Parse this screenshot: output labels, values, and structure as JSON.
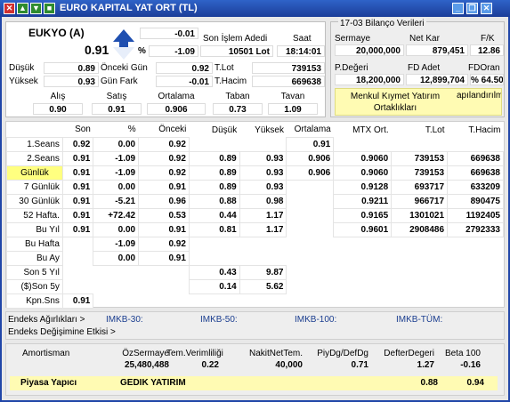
{
  "window": {
    "title": "EURO KAPITAL YAT ORT (TL)",
    "buttons": [
      "minimize-icon",
      "restore-icon",
      "close-icon"
    ]
  },
  "quote": {
    "symbol": "EUKYO (A)",
    "last_price": "0.91",
    "change": "-0.01",
    "change_pct": "-1.09",
    "pct_sign": "%",
    "last_trade_label": "Son İşlem Adedi",
    "last_trade_value": "10501 Lot",
    "time_label": "Saat",
    "time_value": "18:14:01"
  },
  "stats": {
    "low_label": "Düşük",
    "low": "0.89",
    "prev_day_label": "Önceki Gün",
    "prev_day": "0.92",
    "tlot_label": "T.Lot",
    "tlot": "739153",
    "high_label": "Yüksek",
    "high": "0.93",
    "day_diff_label": "Gün Fark",
    "day_diff": "-0.01",
    "thacim_label": "T.Hacim",
    "thacim": "669638"
  },
  "bidask": {
    "headers": [
      "Alış",
      "Satış",
      "Ortalama",
      "Taban",
      "Tavan"
    ],
    "values": [
      "0.90",
      "0.91",
      "0.906",
      "0.73",
      "1.09"
    ]
  },
  "balance": {
    "title": "17-03 Bilanço Verileri",
    "row1_labels": [
      "Sermaye",
      "Net Kar",
      "F/K"
    ],
    "row1_values": [
      "20,000,000",
      "879,451",
      "12.86"
    ],
    "row2_labels": [
      "P.Değeri",
      "FD Adet",
      "FDOran"
    ],
    "row2_values": [
      "18,200,000",
      "12,899,704",
      "% 64.50"
    ],
    "notice": "Menkul Kıymet Yatırım Ortaklıkları",
    "notice_overflow": "apılandırılm"
  },
  "grid": {
    "headers": [
      "",
      "Son",
      "%",
      "Önceki",
      "Düşük",
      "Yüksek",
      "Ortalama",
      "MTX Ort.",
      "T.Lot",
      "T.Hacim"
    ],
    "rows": [
      [
        "1.Seans",
        "0.92",
        "0.00",
        "0.92",
        "",
        "",
        "0.91",
        "",
        "",
        ""
      ],
      [
        "2.Seans",
        "0.91",
        "-1.09",
        "0.92",
        "0.89",
        "0.93",
        "0.906",
        "0.9060",
        "739153",
        "669638"
      ],
      [
        "Günlük",
        "0.91",
        "-1.09",
        "0.92",
        "0.89",
        "0.93",
        "0.906",
        "0.9060",
        "739153",
        "669638"
      ],
      [
        "7 Günlük",
        "0.91",
        "0.00",
        "0.91",
        "0.89",
        "0.93",
        "",
        "0.9128",
        "693717",
        "633209"
      ],
      [
        "30 Günlük",
        "0.91",
        "-5.21",
        "0.96",
        "0.88",
        "0.98",
        "",
        "0.9211",
        "966717",
        "890475"
      ],
      [
        "52 Hafta.",
        "0.91",
        "+72.42",
        "0.53",
        "0.44",
        "1.17",
        "",
        "0.9165",
        "1301021",
        "1192405"
      ],
      [
        "Bu Yıl",
        "0.91",
        "0.00",
        "0.91",
        "0.81",
        "1.17",
        "",
        "0.9601",
        "2908486",
        "2792333"
      ],
      [
        "Bu Hafta",
        "",
        "-1.09",
        "0.92",
        "",
        "",
        "",
        "",
        "",
        ""
      ],
      [
        "Bu Ay",
        "",
        "0.00",
        "0.91",
        "",
        "",
        "",
        "",
        "",
        ""
      ],
      [
        "Son 5 Yıl",
        "",
        "",
        "",
        "0.43",
        "9.87",
        "",
        "",
        "",
        ""
      ],
      [
        "($)Son 5y",
        "",
        "",
        "",
        "0.14",
        "5.62",
        "",
        "",
        "",
        ""
      ],
      [
        "Kpn.Sns",
        "0.91",
        "",
        "",
        "",
        "",
        "",
        "",
        "",
        ""
      ]
    ]
  },
  "index": {
    "weights_label": "Endeks Ağırlıkları >",
    "effect_label": "Endeks Değişimine Etkisi >",
    "imkb30": "IMKB-30:",
    "imkb50": "IMKB-50:",
    "imkb100": "IMKB-100:",
    "imkbtum": "IMKB-TÜM:"
  },
  "ratios": {
    "amortisman_label": "Amortisman",
    "headers": [
      "ÖzSermaye",
      "Tem.Verimliliği",
      "NakitNetTem.",
      "PiyDg/DefDg",
      "DefterDegeri",
      "Beta 100"
    ],
    "values": [
      "25,480,488",
      "0.22",
      "40,000",
      "0.71",
      "1.27",
      "-0.16"
    ]
  },
  "market_maker": {
    "label": "Piyasa Yapıcı",
    "name": "GEDIK YATIRIM",
    "val1": "0.88",
    "val2": "0.94"
  },
  "colors": {
    "title_bar": "#1b3d98",
    "highlight": "#ffff80",
    "panel": "#e8e8e8",
    "arrow": "#1f4fb0"
  }
}
